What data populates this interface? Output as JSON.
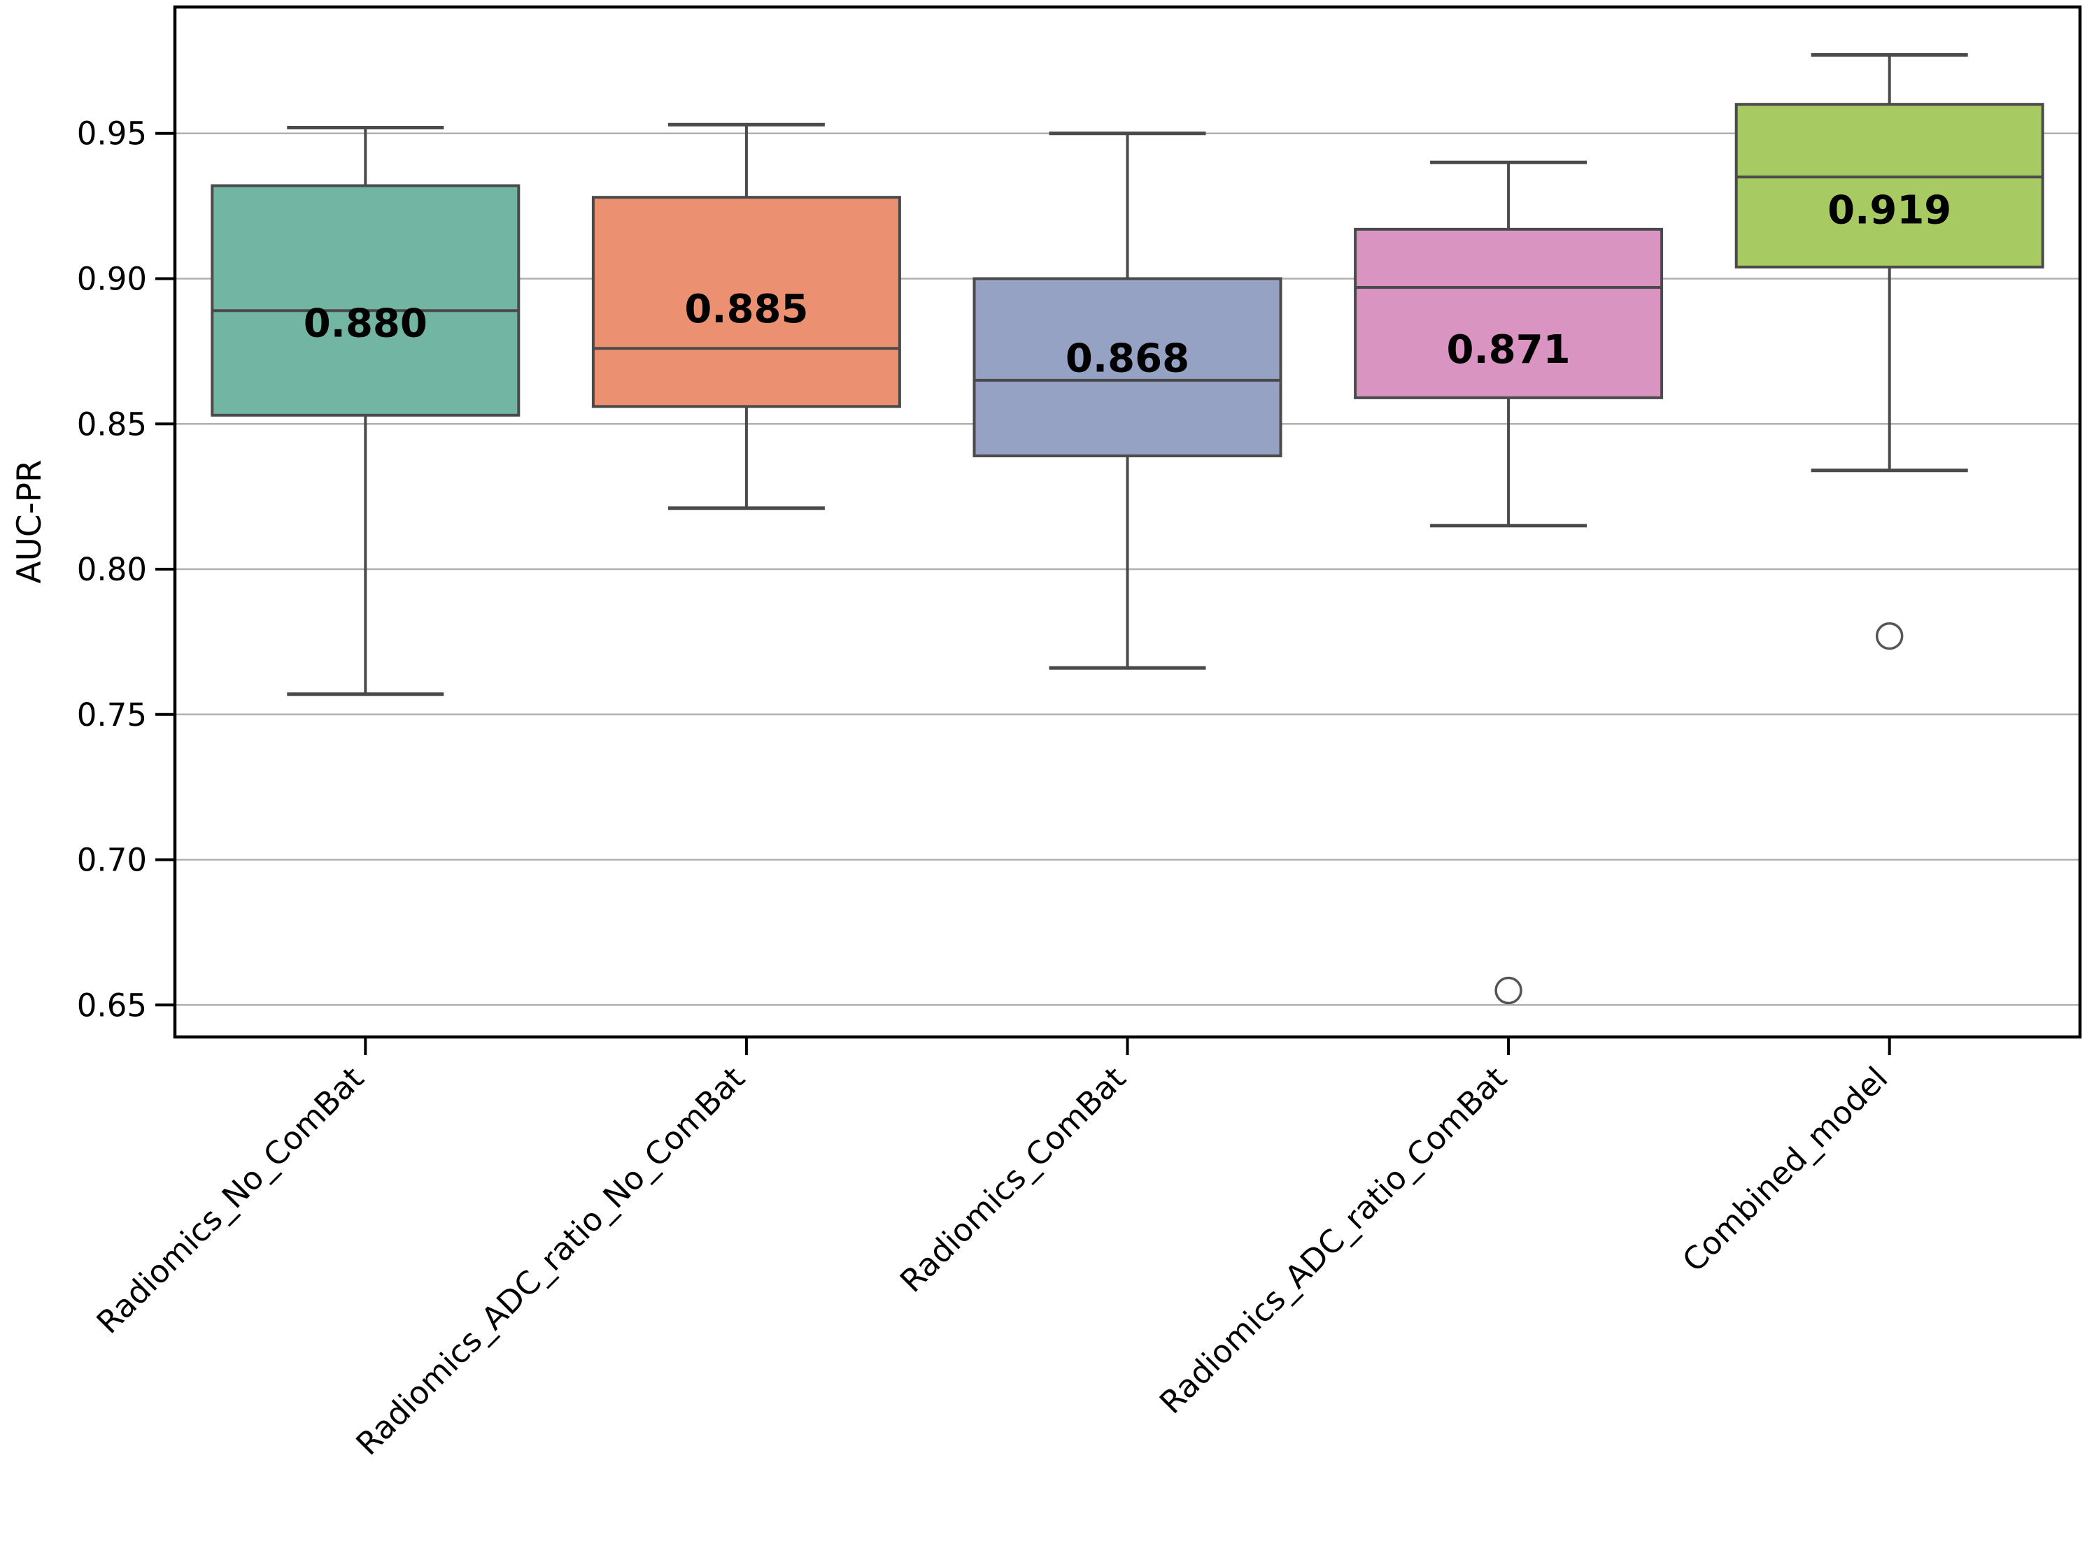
{
  "figure": {
    "background": "#ffffff",
    "spine_color": "#000000",
    "grid_color": "#b0b0b0",
    "box_edge_color": "#4a4a4a",
    "text_color": "#000000"
  },
  "chart_data": {
    "type": "box",
    "title": "",
    "xlabel": "",
    "ylabel": "AUC-PR",
    "grid": "horizontal gridlines on",
    "legend": "none",
    "ylim": [
      0.639,
      0.9935
    ],
    "y_ticks": [
      0.65,
      0.7,
      0.75,
      0.8,
      0.85,
      0.9,
      0.95
    ],
    "x_tick_rotation_deg": 45,
    "categories": [
      "Radiomics_No_ComBat",
      "Radiomics_ADC_ratio_No_ComBat",
      "Radiomics_ComBat",
      "Radiomics_ADC_ratio_ComBat",
      "Combined_model"
    ],
    "series": [
      {
        "name": "Radiomics_No_ComBat",
        "color": "#71b5a2",
        "whisker_low": 0.757,
        "q1": 0.853,
        "median": 0.889,
        "q3": 0.932,
        "whisker_high": 0.952,
        "mean_label": "0.880",
        "outliers": []
      },
      {
        "name": "Radiomics_ADC_ratio_No_ComBat",
        "color": "#eb9172",
        "whisker_low": 0.821,
        "q1": 0.856,
        "median": 0.876,
        "q3": 0.928,
        "whisker_high": 0.953,
        "mean_label": "0.885",
        "outliers": []
      },
      {
        "name": "Radiomics_ComBat",
        "color": "#95a2c3",
        "whisker_low": 0.766,
        "q1": 0.839,
        "median": 0.865,
        "q3": 0.9,
        "whisker_high": 0.95,
        "mean_label": "0.868",
        "outliers": []
      },
      {
        "name": "Radiomics_ADC_ratio_ComBat",
        "color": "#da94c1",
        "whisker_low": 0.815,
        "q1": 0.859,
        "median": 0.897,
        "q3": 0.917,
        "whisker_high": 0.94,
        "mean_label": "0.871",
        "outliers": [
          0.655
        ]
      },
      {
        "name": "Combined_model",
        "color": "#a7ca63",
        "whisker_low": 0.834,
        "q1": 0.904,
        "median": 0.935,
        "q3": 0.96,
        "whisker_high": 0.977,
        "mean_label": "0.919",
        "outliers": [
          0.777
        ]
      }
    ]
  }
}
